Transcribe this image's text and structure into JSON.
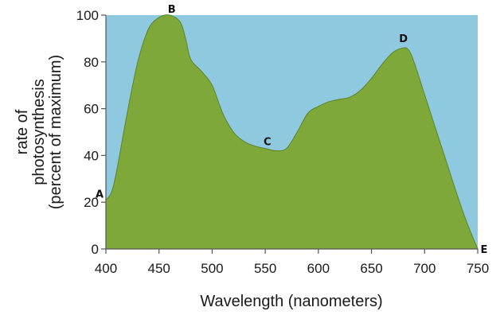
{
  "chart_data": {
    "type": "area",
    "xlabel": "Wavelength (nanometers)",
    "ylabel_lines": [
      "rate of",
      "photosynthesis",
      "(percent of maximum)"
    ],
    "xlim": [
      400,
      750
    ],
    "ylim": [
      0,
      100
    ],
    "x_ticks": [
      "400",
      "450",
      "500",
      "550",
      "600",
      "650",
      "700",
      "750"
    ],
    "y_ticks": [
      "0",
      "20",
      "40",
      "60",
      "80",
      "100"
    ],
    "grid": false,
    "series": [
      {
        "x": [
          400,
          405,
          410,
          420,
          430,
          440,
          450,
          460,
          470,
          475,
          480,
          490,
          500,
          510,
          520,
          530,
          540,
          550,
          560,
          570,
          580,
          590,
          600,
          610,
          620,
          630,
          640,
          650,
          660,
          670,
          680,
          685,
          690,
          700,
          710,
          720,
          730,
          740,
          750
        ],
        "y": [
          21,
          24,
          33,
          58,
          80,
          94,
          99,
          100,
          97,
          90,
          81,
          76,
          70,
          58,
          50,
          46,
          44,
          43,
          42,
          43,
          50,
          58,
          61,
          63,
          64,
          65,
          68,
          73,
          79,
          84,
          86,
          85,
          80,
          66,
          52,
          38,
          24,
          11,
          0
        ]
      }
    ],
    "annotations": [
      {
        "text": "A",
        "x": 400,
        "y": 21
      },
      {
        "text": "B",
        "x": 462,
        "y": 100
      },
      {
        "text": "C",
        "x": 552,
        "y": 43
      },
      {
        "text": "D",
        "x": 680,
        "y": 86
      },
      {
        "text": "E",
        "x": 750,
        "y": 0
      }
    ],
    "colors": {
      "background": "#8ec9e0",
      "fill": "#7ea83a",
      "outline": "#5e8526"
    }
  }
}
